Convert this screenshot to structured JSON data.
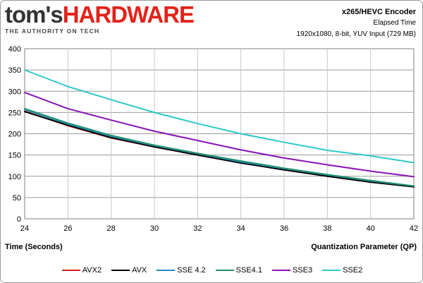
{
  "branding": {
    "logo_part1": "tom's",
    "logo_part2": "HARDWARE",
    "tagline": "THE AUTHORITY ON TECH"
  },
  "header": {
    "title": "x265/HEVC Encoder",
    "subtitle": "Elapsed Time",
    "detail": "1920x1080, 8-bit, YUV Input (729 MB)"
  },
  "chart_data": {
    "type": "line",
    "title": "x265/HEVC Encoder",
    "subtitle": "Elapsed Time",
    "xlabel": "Quantization Parameter (QP)",
    "ylabel": "Time (Seconds)",
    "xlim": [
      24,
      42
    ],
    "ylim": [
      0,
      400
    ],
    "x_ticks": [
      24,
      26,
      28,
      30,
      32,
      34,
      36,
      38,
      40,
      42
    ],
    "y_ticks": [
      0,
      50,
      100,
      150,
      200,
      250,
      300,
      350,
      400
    ],
    "grid": true,
    "legend_position": "bottom",
    "x": [
      24,
      26,
      28,
      30,
      32,
      34,
      36,
      38,
      40,
      42
    ],
    "series": [
      {
        "name": "AVX2",
        "color": "#d62020",
        "values": [
          253,
          219,
          190,
          169,
          150,
          132,
          116,
          101,
          87,
          76
        ]
      },
      {
        "name": "AVX",
        "color": "#000000",
        "values": [
          252,
          220,
          191,
          169,
          150,
          131,
          115,
          100,
          86,
          75
        ]
      },
      {
        "name": "SSE 4.2",
        "color": "#1f8fc8",
        "values": [
          257,
          223,
          194,
          172,
          153,
          134,
          118,
          103,
          89,
          77
        ]
      },
      {
        "name": "SSE4.1",
        "color": "#23906a",
        "values": [
          259,
          225,
          196,
          173,
          154,
          136,
          119,
          104,
          90,
          77
        ]
      },
      {
        "name": "SSE3",
        "color": "#8a14b8",
        "values": [
          297,
          259,
          232,
          206,
          184,
          162,
          143,
          127,
          112,
          99
        ]
      },
      {
        "name": "SSE2",
        "color": "#2ec9c9",
        "values": [
          350,
          311,
          280,
          250,
          224,
          200,
          180,
          161,
          148,
          132
        ]
      }
    ]
  }
}
